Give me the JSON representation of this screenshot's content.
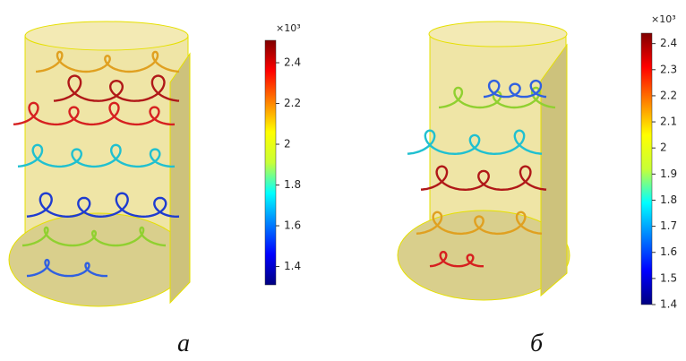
{
  "panels": [
    {
      "label": "a",
      "colorbar": {
        "multiplier": "×10³",
        "lim": [
          1.31,
          2.51
        ],
        "ticks": [
          1.4,
          1.6,
          1.8,
          2,
          2.2,
          2.4
        ]
      }
    },
    {
      "label": "б",
      "colorbar": {
        "multiplier": "×10³",
        "lim": [
          1.4,
          2.44
        ],
        "ticks": [
          1.4,
          1.5,
          1.6,
          1.7,
          1.8,
          1.9,
          2,
          2.1,
          2.2,
          2.3,
          2.4
        ]
      }
    }
  ]
}
